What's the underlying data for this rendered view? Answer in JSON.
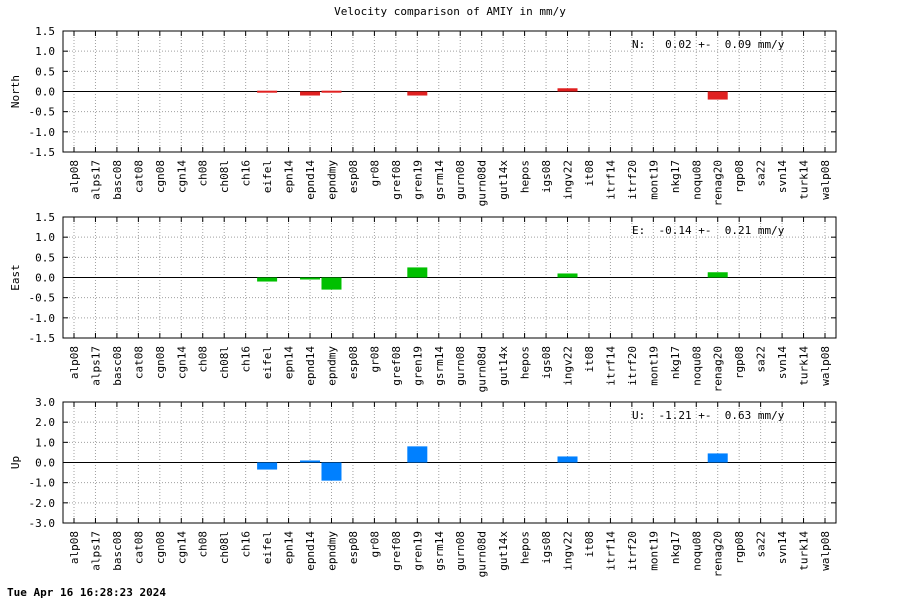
{
  "title": "Velocity comparison of AMIY in mm/y",
  "footer": "Tue Apr 16 16:28:23 2024",
  "chart_data": {
    "type": "bar",
    "title": "Velocity comparison of AMIY in mm/y",
    "categories": [
      "alp08",
      "alps17",
      "basc08",
      "cat08",
      "cgn08",
      "cgn14",
      "ch08",
      "ch08l",
      "ch16",
      "eifel",
      "epn14",
      "epnd14",
      "epndmy",
      "esp08",
      "gr08",
      "gref08",
      "gren19",
      "gsrm14",
      "gurn08",
      "gurn08d",
      "gut14x",
      "hepos",
      "igs08",
      "ingv22",
      "it08",
      "itrf14",
      "itrf20",
      "mont19",
      "nkg17",
      "noqu08",
      "renag20",
      "rgp08",
      "sa22",
      "svn14",
      "turk14",
      "walp08"
    ],
    "grid": true,
    "panels": [
      {
        "ylabel": "North",
        "ylim": [
          -1.5,
          1.5
        ],
        "yticks": [
          "1.5",
          "1.0",
          "0.5",
          "0.0",
          "-0.5",
          "-1.0",
          "-1.5"
        ],
        "color": "#e02020",
        "summary": "N:   0.02 +-  0.09 mm/y",
        "values": {
          "eifel": 0.02,
          "epnd14": -0.1,
          "epndmy": 0.02,
          "gren19": -0.1,
          "ingv22": 0.08,
          "renag20": -0.2
        }
      },
      {
        "ylabel": "East",
        "ylim": [
          -1.5,
          1.5
        ],
        "yticks": [
          "1.5",
          "1.0",
          "0.5",
          "0.0",
          "-0.5",
          "-1.0",
          "-1.5"
        ],
        "color": "#00c000",
        "summary": "E:  -0.14 +-  0.21 mm/y",
        "values": {
          "eifel": -0.1,
          "epnd14": -0.03,
          "epndmy": -0.3,
          "gren19": 0.25,
          "ingv22": 0.1,
          "renag20": 0.13
        }
      },
      {
        "ylabel": "Up",
        "ylim": [
          -3.0,
          3.0
        ],
        "yticks": [
          "3.0",
          "2.0",
          "1.0",
          "0.0",
          "-1.0",
          "-2.0",
          "-3.0"
        ],
        "color": "#0080ff",
        "summary": "U:  -1.21 +-  0.63 mm/y",
        "values": {
          "eifel": -0.35,
          "epnd14": 0.1,
          "epndmy": -0.9,
          "gren19": 0.8,
          "ingv22": 0.3,
          "renag20": 0.45
        }
      }
    ]
  }
}
